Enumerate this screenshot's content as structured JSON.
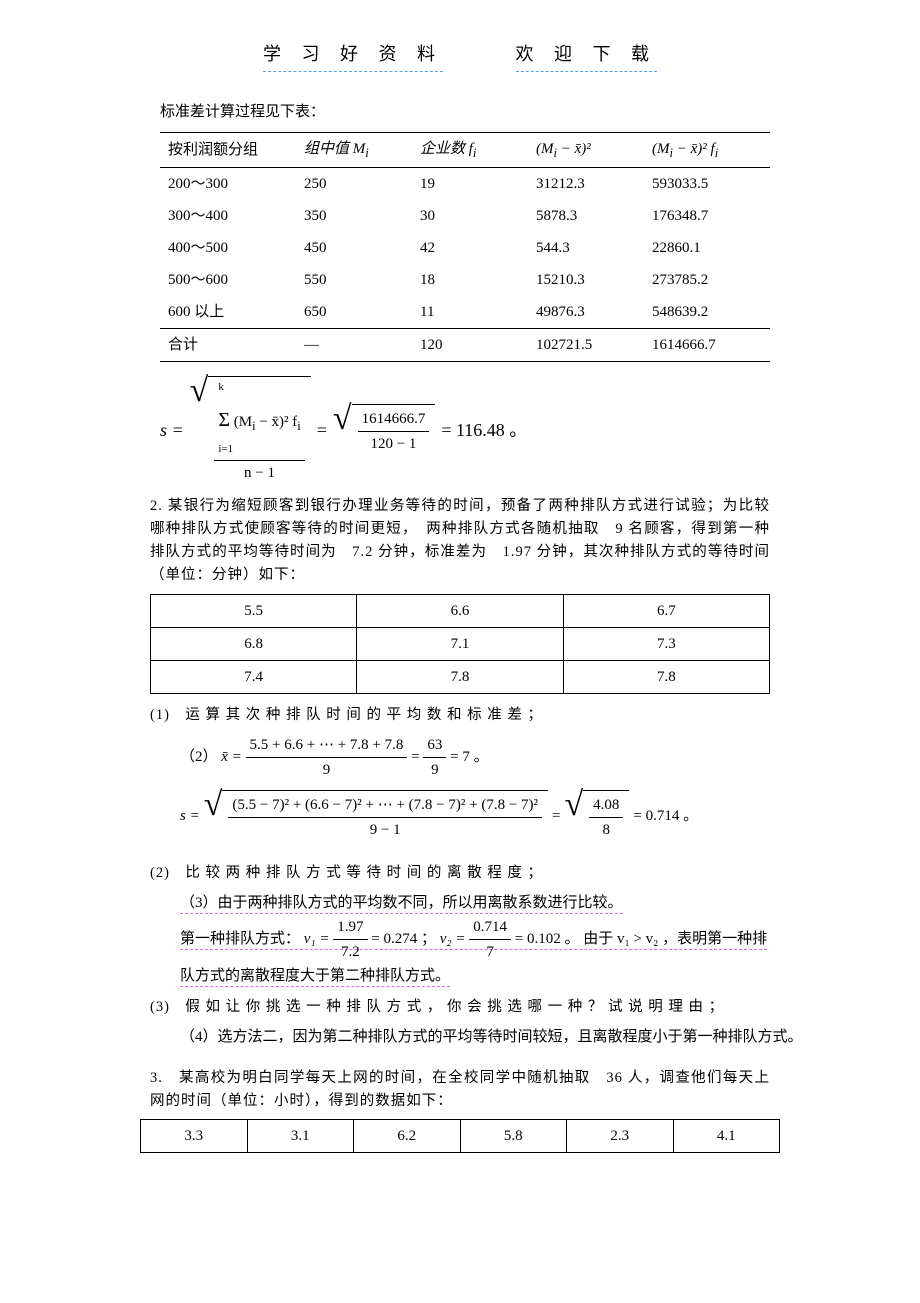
{
  "header": {
    "left": "学 习 好 资 料",
    "right": "欢 迎 下 载"
  },
  "table1_caption": "标准差计算过程见下表：",
  "table1": {
    "headers": [
      "按利润额分组",
      "组中值 Mᵢ",
      "企业数 fᵢ",
      "(Mᵢ − x̄)²",
      "(Mᵢ − x̄)² fᵢ"
    ],
    "rows": [
      [
        "200～300",
        "250",
        "19",
        "31212.3",
        "593033.5"
      ],
      [
        "300～400",
        "350",
        "30",
        "5878.3",
        "176348.7"
      ],
      [
        "400～500",
        "450",
        "42",
        "544.3",
        "22860.1"
      ],
      [
        "500～600",
        "550",
        "18",
        "15210.3",
        "273785.2"
      ],
      [
        "600 以上",
        "650",
        "11",
        "49876.3",
        "548639.2"
      ],
      [
        "合计",
        "—",
        "120",
        "102721.5",
        "1614666.7"
      ]
    ],
    "col_widths": [
      "120px",
      "100px",
      "100px",
      "100px",
      "110px"
    ]
  },
  "formula1": {
    "lhs": "s =",
    "frac_num_top": "Σ (Mᵢ − x̄)² fᵢ",
    "frac_num_limits": "i=1..k",
    "frac_den": "n − 1",
    "mid": " = ",
    "frac2_num": "1614666.7",
    "frac2_den": "120 − 1",
    "rhs": " = 116.48 。"
  },
  "q2_text": "2. 某银行为缩短顾客到银行办理业务等待的时间，预备了两种排队方式进行试验；为比较哪种排队方式使顾客等待的时间更短，　两种排队方式各随机抽取　9 名顾客，得到第一种排队方式的平均等待时间为　7.2 分钟，标准差为　1.97 分钟，其次种排队方式的等待时间（单位：分钟）如下：",
  "table2": {
    "rows": [
      [
        "5.5",
        "6.6",
        "6.7"
      ],
      [
        "6.8",
        "7.1",
        "7.3"
      ],
      [
        "7.4",
        "7.8",
        "7.8"
      ]
    ]
  },
  "q2_1": "(1)　运 算 其 次 种 排 队 时 间 的 平 均 数 和 标 准 差 ；",
  "ans2_mean": {
    "label": "（2）",
    "lhs": "x̄ =",
    "num": "5.5 + 6.6 + ⋯ + 7.8 + 7.8",
    "den": "9",
    "mid": "=",
    "num2": "63",
    "den2": "9",
    "rhs": "= 7 。"
  },
  "ans2_s": {
    "lhs": "s =",
    "rad_num": "(5.5 − 7)² + (6.6 − 7)² + ⋯ + (7.8 − 7)² + (7.8 − 7)²",
    "rad_den": "9 − 1",
    "mid": "=",
    "rad2_num": "4.08",
    "rad2_den": "8",
    "rhs": "= 0.714 。"
  },
  "q2_2": "(2)　比 较 两 种 排 队 方 式 等 待 时 间 的 离 散 程 度 ；",
  "ans2_2a": "（3）由于两种排队方式的平均数不同，所以用离散系数进行比较。",
  "ans2_2b_pre": "第一种排队方式：",
  "ans2_2b_v1": {
    "lhs": "v₁ =",
    "num": "1.97",
    "den": "7.2",
    "val": "= 0.274 ；"
  },
  "ans2_2b_v2": {
    "lhs": "v₂ =",
    "num": "0.714",
    "den": "7",
    "val": "= 0.102 。"
  },
  "ans2_2b_post": "由于 v₁ > v₂ ，表明第一种排",
  "ans2_2c": "队方式的离散程度大于第二种排队方式。",
  "q2_3": "(3)　假 如 让 你 挑 选 一 种 排 队 方 式 ， 你 会 挑 选 哪 一 种 ？ 试 说 明 理 由 ；",
  "ans2_3": "（4）选方法二，因为第二种排队方式的平均等待时间较短，且离散程度小于第一种排队方式。",
  "q3_text": "3.　某高校为明白同学每天上网的时间，在全校同学中随机抽取　36 人，调查他们每天上网的时间（单位：小时），得到的数据如下：",
  "table3": {
    "rows": [
      [
        "3.3",
        "3.1",
        "6.2",
        "5.8",
        "2.3",
        "4.1"
      ]
    ]
  },
  "colors": {
    "header_underline": "#5aa0e6",
    "highlight_underline": "#d46fea",
    "text": "#000000",
    "bg": "#ffffff"
  }
}
